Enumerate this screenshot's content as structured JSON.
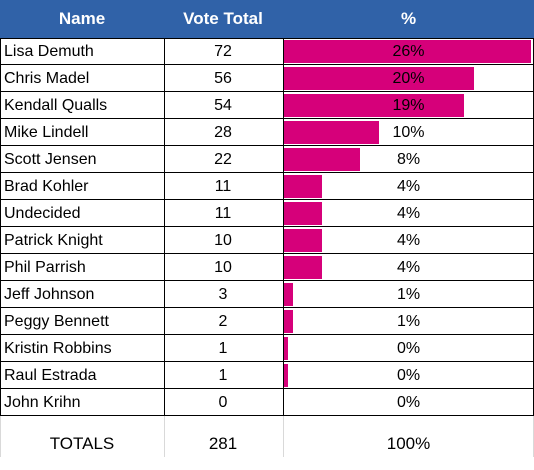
{
  "table": {
    "headers": {
      "name": "Name",
      "votes": "Vote Total",
      "pct": "%"
    },
    "bar_color": "#d6007a",
    "header_color": "#3062a8",
    "rows": [
      {
        "name": "Lisa Demuth",
        "votes": "72",
        "pct": "26%",
        "share": 0.26
      },
      {
        "name": "Chris Madel",
        "votes": "56",
        "pct": "20%",
        "share": 0.2
      },
      {
        "name": "Kendall Qualls",
        "votes": "54",
        "pct": "19%",
        "share": 0.19
      },
      {
        "name": "Mike Lindell",
        "votes": "28",
        "pct": "10%",
        "share": 0.1
      },
      {
        "name": "Scott Jensen",
        "votes": "22",
        "pct": "8%",
        "share": 0.08
      },
      {
        "name": "Brad Kohler",
        "votes": "11",
        "pct": "4%",
        "share": 0.04
      },
      {
        "name": "Undecided",
        "votes": "11",
        "pct": "4%",
        "share": 0.04
      },
      {
        "name": "Patrick Knight",
        "votes": "10",
        "pct": "4%",
        "share": 0.04
      },
      {
        "name": "Phil Parrish",
        "votes": "10",
        "pct": "4%",
        "share": 0.04
      },
      {
        "name": "Jeff Johnson",
        "votes": "3",
        "pct": "1%",
        "share": 0.01
      },
      {
        "name": "Peggy Bennett",
        "votes": "2",
        "pct": "1%",
        "share": 0.01
      },
      {
        "name": "Kristin Robbins",
        "votes": "1",
        "pct": "0%",
        "share": 0.004
      },
      {
        "name": "Raul Estrada",
        "votes": "1",
        "pct": "0%",
        "share": 0.004
      },
      {
        "name": "John Krihn",
        "votes": "0",
        "pct": "0%",
        "share": 0
      }
    ],
    "totals": {
      "label": "TOTALS",
      "votes": "281",
      "pct": "100%"
    }
  }
}
